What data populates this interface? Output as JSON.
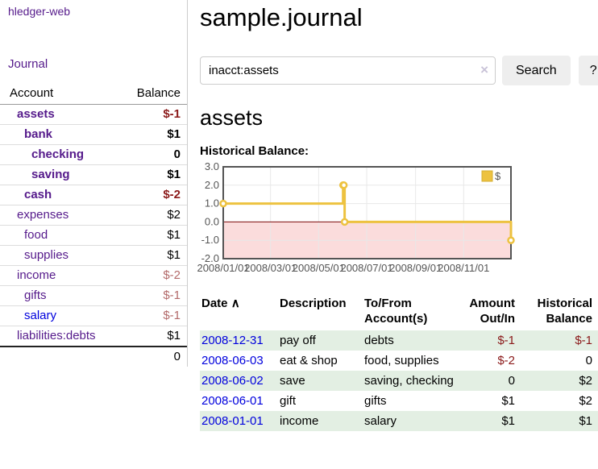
{
  "sidebar": {
    "app_link": "hledger-web",
    "journal_link": "Journal",
    "accounts_table": {
      "headers": [
        "Account",
        "Balance"
      ],
      "rows": [
        {
          "account": "assets",
          "depth": 1,
          "bold": true,
          "balance": "$-1",
          "balance_class": "neg"
        },
        {
          "account": "bank",
          "depth": 2,
          "bold": true,
          "balance": "$1",
          "balance_class": "pos"
        },
        {
          "account": "checking",
          "depth": 3,
          "bold": true,
          "balance": "0",
          "balance_class": "pos"
        },
        {
          "account": "saving",
          "depth": 3,
          "bold": true,
          "balance": "$1",
          "balance_class": "pos"
        },
        {
          "account": "cash",
          "depth": 2,
          "bold": true,
          "balance": "$-2",
          "balance_class": "neg"
        },
        {
          "account": "expenses",
          "depth": 1,
          "bold": false,
          "balance": "$2",
          "balance_class": "pos"
        },
        {
          "account": "food",
          "depth": 2,
          "bold": false,
          "balance": "$1",
          "balance_class": "pos"
        },
        {
          "account": "supplies",
          "depth": 2,
          "bold": false,
          "balance": "$1",
          "balance_class": "pos"
        },
        {
          "account": "income",
          "depth": 1,
          "bold": false,
          "balance": "$-2",
          "balance_class": "neg-light"
        },
        {
          "account": "gifts",
          "depth": 2,
          "bold": false,
          "balance": "$-1",
          "balance_class": "neg-light"
        },
        {
          "account": "salary",
          "depth": 2,
          "bold": false,
          "balance": "$-1",
          "balance_class": "neg-light",
          "link_class": "unvisited"
        },
        {
          "account": "liabilities:debts",
          "depth": 1,
          "bold": false,
          "balance": "$1",
          "balance_class": "pos"
        }
      ],
      "total": "0"
    }
  },
  "main": {
    "title": "sample.journal",
    "search": {
      "value": "inacct:assets",
      "clear_icon": "×",
      "search_button": "Search",
      "help_button": "?"
    },
    "account_heading": "assets",
    "chart_label": "Historical Balance:",
    "register_table": {
      "columns": [
        {
          "label": "Date",
          "sort_icon": "∧",
          "align": "left"
        },
        {
          "label": "Description",
          "align": "left"
        },
        {
          "label": "To/From Account(s)",
          "align": "left"
        },
        {
          "label": "Amount Out/In",
          "align": "right"
        },
        {
          "label": "Historical Balance",
          "align": "right"
        }
      ],
      "rows": [
        {
          "date": "2008-12-31",
          "description": "pay off",
          "accounts": "debts",
          "amount": "$-1",
          "amount_class": "neg",
          "balance": "$-1",
          "balance_class": "neg"
        },
        {
          "date": "2008-06-03",
          "description": "eat & shop",
          "accounts": "food, supplies",
          "amount": "$-2",
          "amount_class": "neg",
          "balance": "0",
          "balance_class": "pos"
        },
        {
          "date": "2008-06-02",
          "description": "save",
          "accounts": "saving, checking",
          "amount": "0",
          "amount_class": "pos",
          "balance": "$2",
          "balance_class": "pos"
        },
        {
          "date": "2008-06-01",
          "description": "gift",
          "accounts": "gifts",
          "amount": "$1",
          "amount_class": "pos",
          "balance": "$2",
          "balance_class": "pos"
        },
        {
          "date": "2008-01-01",
          "description": "income",
          "accounts": "salary",
          "amount": "$1",
          "amount_class": "pos",
          "balance": "$1",
          "balance_class": "pos"
        }
      ]
    }
  },
  "chart_data": {
    "type": "line",
    "title": "Historical Balance:",
    "step": true,
    "series": [
      {
        "name": "$",
        "color": "#edc240",
        "points": [
          [
            "2008/01/01",
            1
          ],
          [
            "2008/06/01",
            2
          ],
          [
            "2008/06/02",
            2
          ],
          [
            "2008/06/03",
            0
          ],
          [
            "2008/12/31",
            -1
          ]
        ]
      }
    ],
    "xlim": [
      "2008/01/01",
      "2008/12/31"
    ],
    "ylim": [
      -2,
      3
    ],
    "x_ticks": [
      "2008/01/01",
      "2008/03/01",
      "2008/05/01",
      "2008/07/01",
      "2008/09/01",
      "2008/11/01"
    ],
    "y_ticks": [
      3,
      2,
      1,
      0,
      -1,
      -2
    ],
    "legend": {
      "label": "$",
      "position": "top-right"
    },
    "grid": true,
    "negative_region_color": "#fbdcdc",
    "zero_line_color": "#7d0a0a",
    "axis_color": "#545454",
    "grid_color": "#e8e8e8"
  }
}
